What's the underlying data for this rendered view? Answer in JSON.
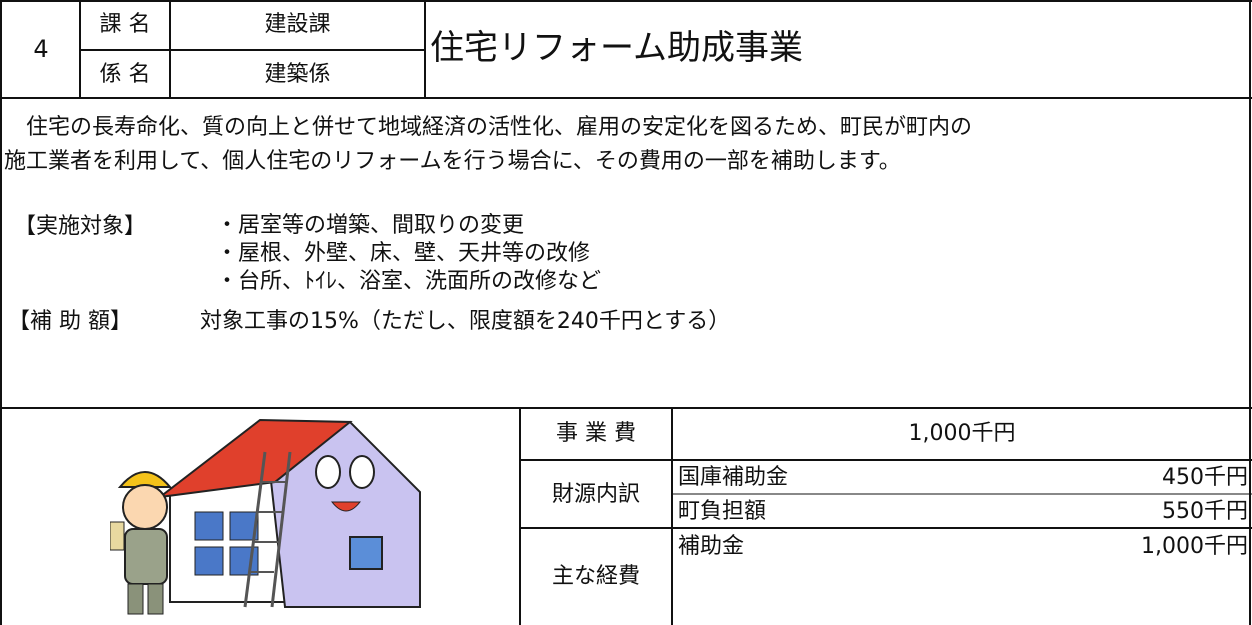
{
  "header": {
    "number": "4",
    "rows": [
      {
        "label": "課 名",
        "value": "建設課"
      },
      {
        "label": "係 名",
        "value": "建築係"
      }
    ],
    "title": "住宅リフォーム助成事業"
  },
  "description": {
    "lines": [
      "　住宅の長寿命化、質の向上と併せて地域経済の活性化、雇用の安定化を図るため、町民が町内の",
      "施工業者を利用して、個人住宅のリフォームを行う場合に、その費用の一部を補助します。"
    ]
  },
  "targets": {
    "label": "【実施対象】",
    "items": [
      "・居室等の増築、間取りの変更",
      "・屋根、外壁、床、壁、天井等の改修",
      "・台所、ﾄｲﾚ、浴室、洗面所の改修など"
    ]
  },
  "subsidy": {
    "label": "【補 助 額】",
    "text": "対象工事の15%（ただし、限度額を240千円とする）"
  },
  "budget": {
    "total": {
      "label": "事 業 費",
      "value": "1,000千円"
    },
    "funding": {
      "label": "財源内訳",
      "items": [
        {
          "name": "国庫補助金",
          "amount": "450千円"
        },
        {
          "name": "町負担額",
          "amount": "550千円"
        }
      ]
    },
    "expenses": {
      "label": "主な経費",
      "items": [
        {
          "name": "補助金",
          "amount": "1,000千円"
        }
      ]
    }
  }
}
